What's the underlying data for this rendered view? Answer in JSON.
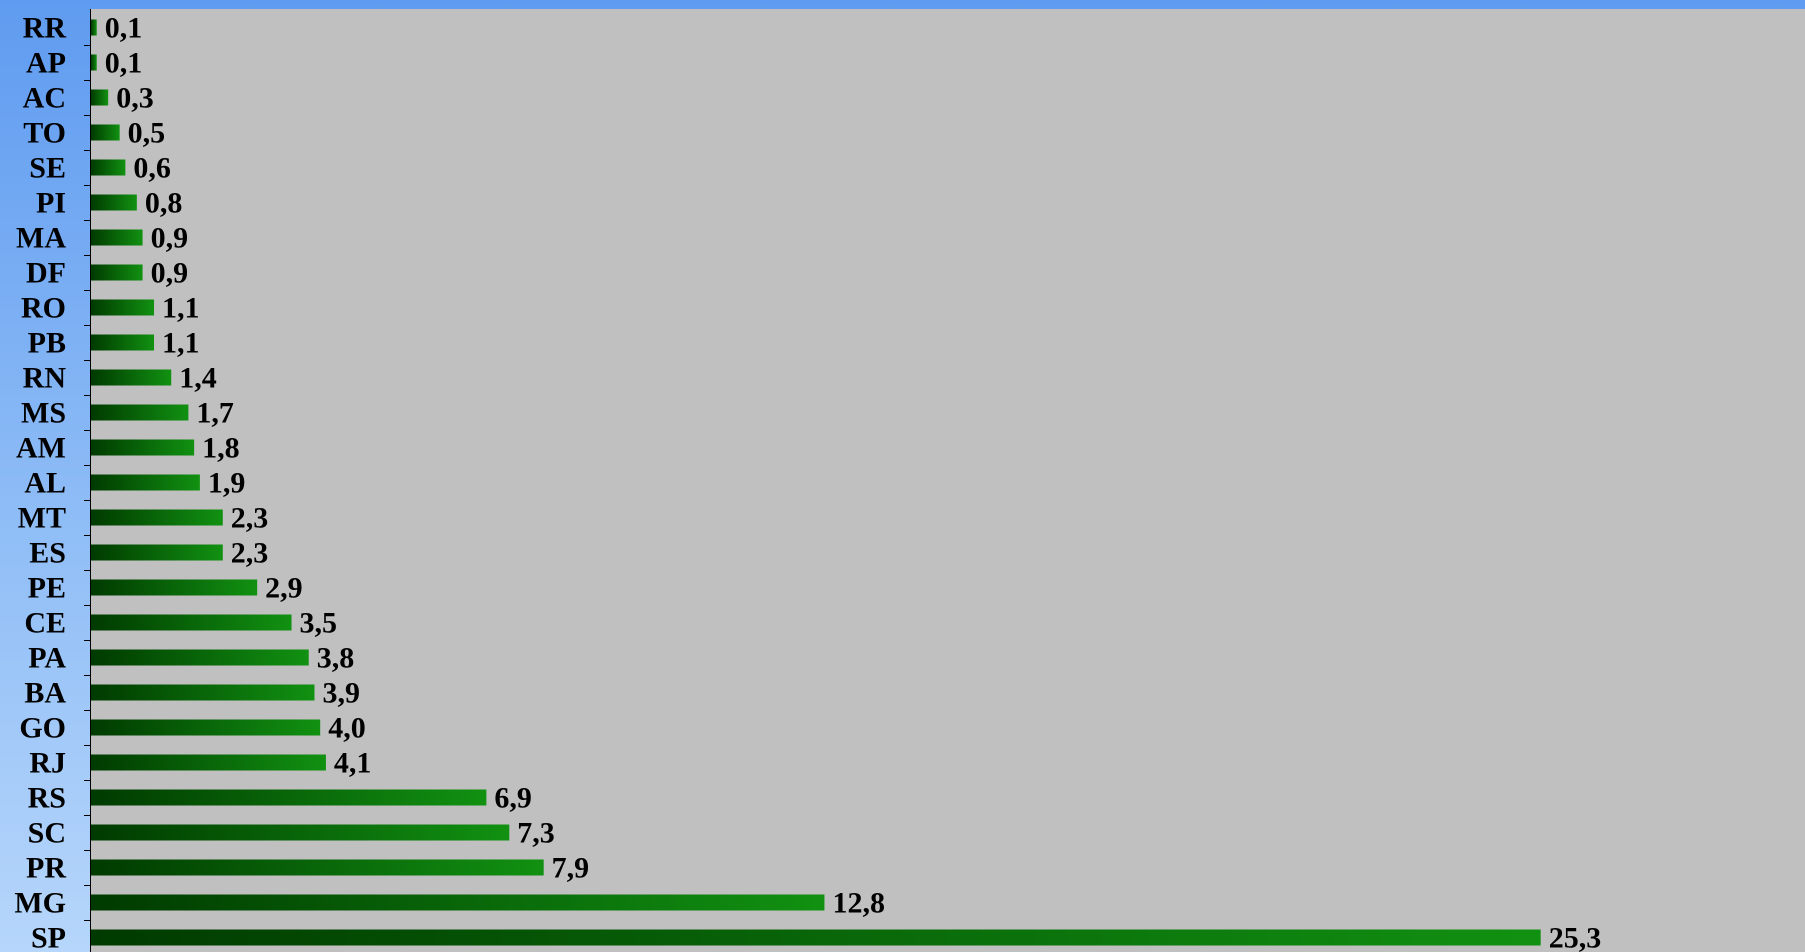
{
  "chart_data": {
    "type": "bar",
    "orientation": "horizontal",
    "categories": [
      "RR",
      "AP",
      "AC",
      "TO",
      "SE",
      "PI",
      "MA",
      "DF",
      "RO",
      "PB",
      "RN",
      "MS",
      "AM",
      "AL",
      "MT",
      "ES",
      "PE",
      "CE",
      "PA",
      "BA",
      "GO",
      "RJ",
      "RS",
      "SC",
      "PR",
      "MG",
      "SP"
    ],
    "values": [
      0.1,
      0.1,
      0.3,
      0.5,
      0.6,
      0.8,
      0.9,
      0.9,
      1.1,
      1.1,
      1.4,
      1.7,
      1.8,
      1.9,
      2.3,
      2.3,
      2.9,
      3.5,
      3.8,
      3.9,
      4.0,
      4.1,
      6.9,
      7.3,
      7.9,
      12.8,
      25.3
    ],
    "value_labels": [
      "0,1",
      "0,1",
      "0,3",
      "0,5",
      "0,6",
      "0,8",
      "0,9",
      "0,9",
      "1,1",
      "1,1",
      "1,4",
      "1,7",
      "1,8",
      "1,9",
      "2,3",
      "2,3",
      "2,9",
      "3,5",
      "3,8",
      "3,9",
      "4,0",
      "4,1",
      "6,9",
      "7,3",
      "7,9",
      "12,8",
      "25,3"
    ],
    "title": "",
    "xlabel": "",
    "ylabel": "",
    "grid": false,
    "legend": "none",
    "colors": {
      "plot_background": "#c0c0c0",
      "page_background_top": "#5f9bf0",
      "page_background_bottom": "#b6d6fb",
      "bar_dark": "#003a00",
      "bar_light": "#119111",
      "axis": "#000000",
      "text": "#000000"
    }
  }
}
